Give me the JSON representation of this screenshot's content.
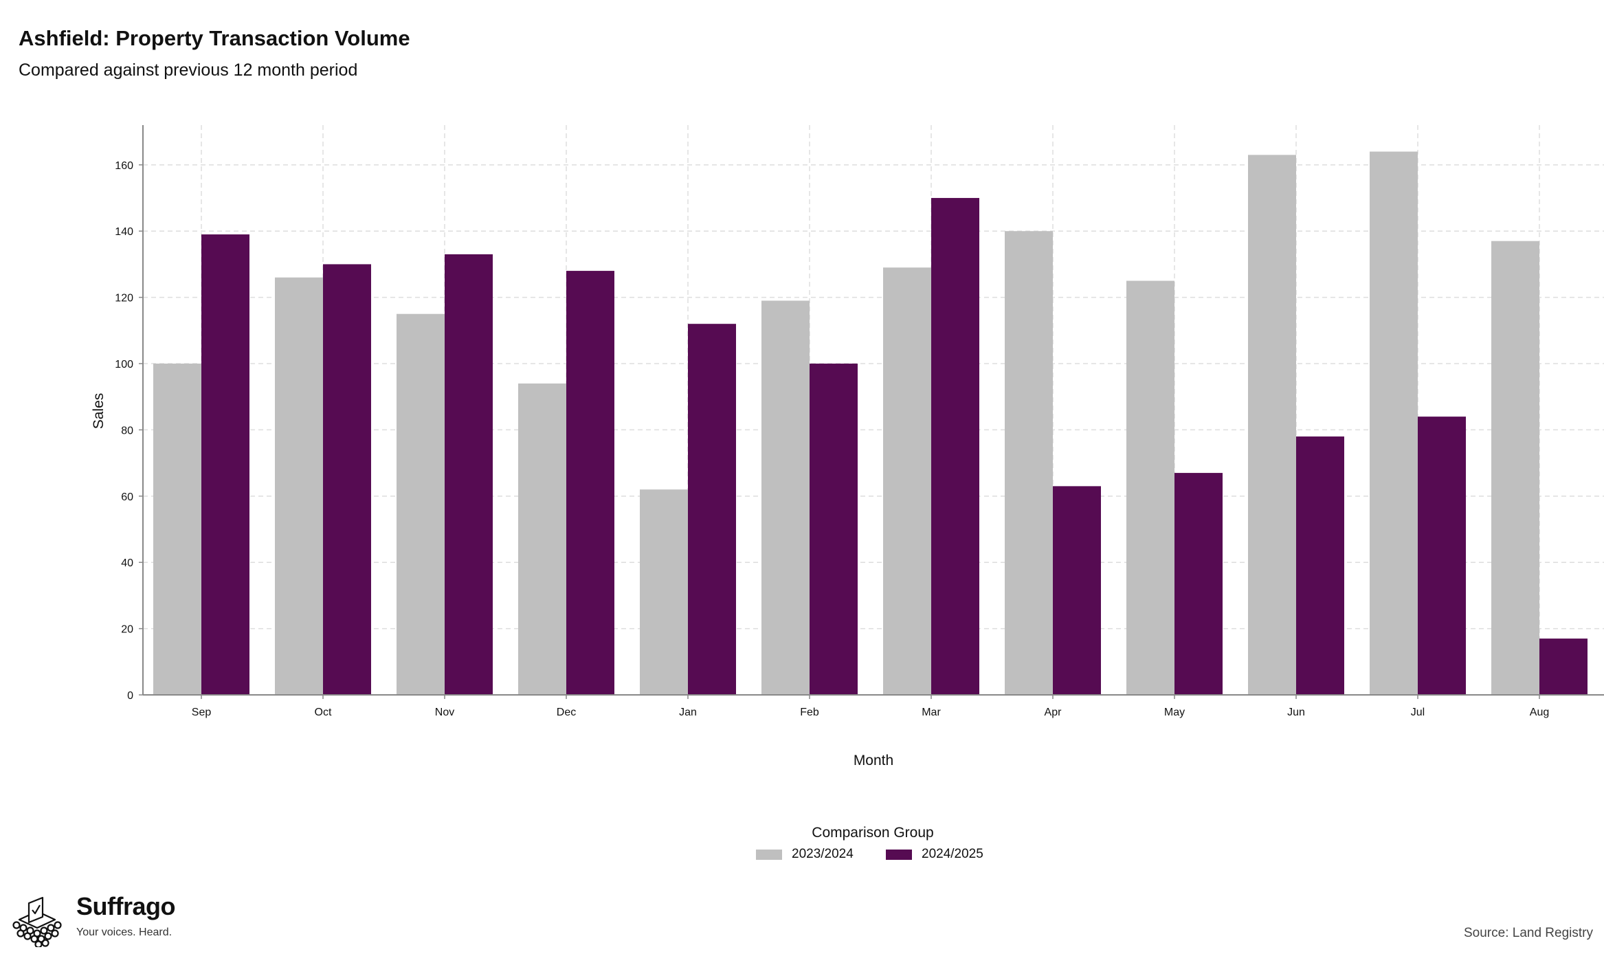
{
  "header": {
    "title": "Ashfield: Property Transaction Volume",
    "subtitle": "Compared against previous 12 month period"
  },
  "legend": {
    "title": "Comparison Group",
    "items": [
      {
        "label": "2023/2024",
        "color": "#bfbfbf"
      },
      {
        "label": "2024/2025",
        "color": "#560b52"
      }
    ]
  },
  "footer": {
    "brand_name": "Suffrago",
    "brand_tagline": "Your voices. Heard.",
    "source": "Source: Land Registry"
  },
  "chart_data": {
    "type": "bar",
    "xlabel": "Month",
    "ylabel": "Sales",
    "ylim": [
      0,
      172
    ],
    "yticks": [
      0,
      20,
      40,
      60,
      80,
      100,
      120,
      140,
      160
    ],
    "grid": true,
    "legend_position": "bottom",
    "categories": [
      "Sep",
      "Oct",
      "Nov",
      "Dec",
      "Jan",
      "Feb",
      "Mar",
      "Apr",
      "May",
      "Jun",
      "Jul",
      "Aug"
    ],
    "series": [
      {
        "name": "2023/2024",
        "color": "#bfbfbf",
        "values": [
          100,
          126,
          115,
          94,
          62,
          119,
          129,
          140,
          125,
          163,
          164,
          137
        ]
      },
      {
        "name": "2024/2025",
        "color": "#560b52",
        "values": [
          139,
          130,
          133,
          128,
          112,
          100,
          150,
          63,
          67,
          78,
          84,
          17
        ]
      }
    ]
  }
}
